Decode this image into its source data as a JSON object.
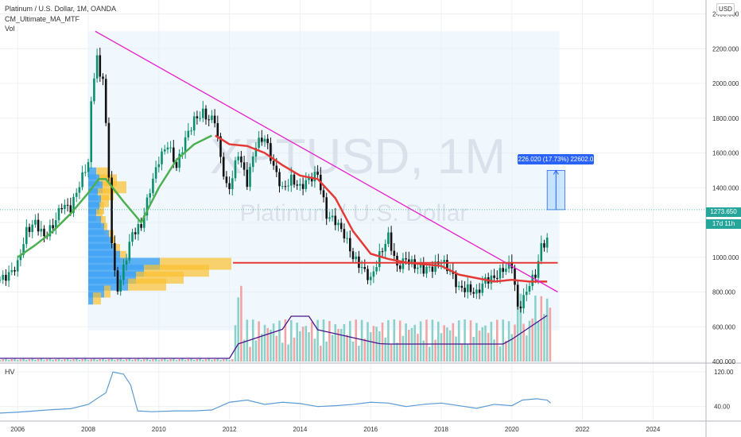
{
  "legend": {
    "symbol_line": "Platinum / U.S. Dollar, 1M, OANDA",
    "indicator1": "CM_Ultimate_MA_MTF",
    "indicator2": "Vol"
  },
  "watermark": {
    "ticker": "XPTUSD, 1M",
    "name": "Platinum / U.S. Dollar"
  },
  "currency_button": "USD",
  "hv_pane_label": "HV",
  "last_price_tag": "1273.650",
  "countdown_tag": "17d 11h",
  "measure_label": "226.020 (17.73%) 22602.0",
  "colors": {
    "up": "#26a69a",
    "down": "#ef5350",
    "ma_fast": "#e53935",
    "ma_slow_green": "#4caf50",
    "trendline": "#e91ecf",
    "level_line": "#e53935",
    "hv_line": "#5b9bd5",
    "vol_ma": "#4a148c",
    "bull_vol": "#80cbc4",
    "bear_vol": "#ef9a9a",
    "measure": "#2962ff"
  },
  "chart_data": [
    {
      "type": "candlestick",
      "title": "Platinum / U.S. Dollar, 1M, OANDA",
      "price_axis": {
        "ticks": [
          400,
          600,
          800,
          1000,
          1200,
          1400,
          1600,
          1800,
          2000,
          2200,
          2400
        ],
        "tick_labels": [
          "400.000",
          "600.000",
          "800.000",
          "1000.000",
          "1200.000",
          "1400.000",
          "1600.000",
          "1800.000",
          "2000.000",
          "2200.000",
          "2400.000"
        ],
        "range": [
          400,
          2480
        ]
      },
      "time_axis": {
        "ticks": [
          2006,
          2008,
          2010,
          2012,
          2014,
          2016,
          2018,
          2020,
          2022,
          2024
        ],
        "tick_labels": [
          "2006",
          "2008",
          "2010",
          "2012",
          "2014",
          "2016",
          "2018",
          "2020",
          "2022",
          "2024"
        ],
        "range": [
          2005.5,
          2025.5
        ]
      },
      "series": [
        {
          "kind": "close",
          "points": [
            [
              2005.5,
              870
            ],
            [
              2005.75,
              900
            ],
            [
              2006.0,
              960
            ],
            [
              2006.25,
              1150
            ],
            [
              2006.5,
              1200
            ],
            [
              2006.75,
              1120
            ],
            [
              2007.0,
              1180
            ],
            [
              2007.25,
              1300
            ],
            [
              2007.5,
              1280
            ],
            [
              2007.75,
              1420
            ],
            [
              2008.0,
              1550
            ],
            [
              2008.08,
              1870
            ],
            [
              2008.17,
              2060
            ],
            [
              2008.25,
              2150
            ],
            [
              2008.33,
              2030
            ],
            [
              2008.42,
              2050
            ],
            [
              2008.5,
              1750
            ],
            [
              2008.58,
              1480
            ],
            [
              2008.67,
              1080
            ],
            [
              2008.75,
              900
            ],
            [
              2008.83,
              820
            ],
            [
              2008.92,
              870
            ],
            [
              2009.0,
              940
            ],
            [
              2009.25,
              1140
            ],
            [
              2009.5,
              1180
            ],
            [
              2009.75,
              1390
            ],
            [
              2010.0,
              1560
            ],
            [
              2010.25,
              1650
            ],
            [
              2010.5,
              1520
            ],
            [
              2010.75,
              1680
            ],
            [
              2011.0,
              1790
            ],
            [
              2011.25,
              1830
            ],
            [
              2011.42,
              1790
            ],
            [
              2011.58,
              1800
            ],
            [
              2011.75,
              1570
            ],
            [
              2011.92,
              1400
            ],
            [
              2012.0,
              1400
            ],
            [
              2012.25,
              1600
            ],
            [
              2012.5,
              1430
            ],
            [
              2012.75,
              1650
            ],
            [
              2013.0,
              1690
            ],
            [
              2013.25,
              1520
            ],
            [
              2013.5,
              1390
            ],
            [
              2013.75,
              1450
            ],
            [
              2014.0,
              1400
            ],
            [
              2014.25,
              1450
            ],
            [
              2014.5,
              1480
            ],
            [
              2014.75,
              1240
            ],
            [
              2015.0,
              1210
            ],
            [
              2015.25,
              1130
            ],
            [
              2015.5,
              1000
            ],
            [
              2015.75,
              940
            ],
            [
              2016.0,
              870
            ],
            [
              2016.25,
              1010
            ],
            [
              2016.5,
              1120
            ],
            [
              2016.75,
              940
            ],
            [
              2017.0,
              990
            ],
            [
              2017.25,
              950
            ],
            [
              2017.5,
              930
            ],
            [
              2017.75,
              940
            ],
            [
              2018.0,
              980
            ],
            [
              2018.25,
              920
            ],
            [
              2018.5,
              820
            ],
            [
              2018.75,
              820
            ],
            [
              2019.0,
              790
            ],
            [
              2019.25,
              870
            ],
            [
              2019.5,
              880
            ],
            [
              2019.75,
              930
            ],
            [
              2020.0,
              960
            ],
            [
              2020.17,
              700
            ],
            [
              2020.33,
              760
            ],
            [
              2020.5,
              850
            ],
            [
              2020.67,
              900
            ],
            [
              2020.83,
              1060
            ],
            [
              2021.0,
              1100
            ],
            [
              2021.08,
              1273.65
            ]
          ]
        },
        {
          "kind": "moving-average",
          "color": "#e53935",
          "points": [
            [
              2011.6,
              1700
            ],
            [
              2012.0,
              1650
            ],
            [
              2012.5,
              1640
            ],
            [
              2013.0,
              1600
            ],
            [
              2013.5,
              1530
            ],
            [
              2014.0,
              1470
            ],
            [
              2014.5,
              1450
            ],
            [
              2015.0,
              1340
            ],
            [
              2015.5,
              1150
            ],
            [
              2016.0,
              1020
            ],
            [
              2016.5,
              990
            ],
            [
              2017.0,
              970
            ],
            [
              2017.5,
              960
            ],
            [
              2018.0,
              950
            ],
            [
              2018.5,
              900
            ],
            [
              2019.0,
              880
            ],
            [
              2019.5,
              860
            ],
            [
              2020.0,
              870
            ],
            [
              2020.5,
              860
            ],
            [
              2021.0,
              860
            ]
          ]
        },
        {
          "kind": "moving-average",
          "color": "#4caf50",
          "points": [
            [
              2006.0,
              1000
            ],
            [
              2006.5,
              1070
            ],
            [
              2007.0,
              1150
            ],
            [
              2007.5,
              1250
            ],
            [
              2008.0,
              1370
            ],
            [
              2008.3,
              1450
            ],
            [
              2008.5,
              1450
            ],
            [
              2009.0,
              1320
            ],
            [
              2009.5,
              1200
            ],
            [
              2010.0,
              1400
            ],
            [
              2010.5,
              1560
            ],
            [
              2011.0,
              1650
            ],
            [
              2011.5,
              1700
            ]
          ]
        }
      ],
      "annotations": {
        "trendline": [
          [
            2008.2,
            2300
          ],
          [
            2021.3,
            800
          ]
        ],
        "level": 968,
        "level_start": 2012.1,
        "measure": {
          "from": 1273.65,
          "to": 1499.67,
          "x_range": [
            2021.0,
            2021.5
          ]
        },
        "shaded_region": {
          "x_range": [
            2008.0,
            2021.35
          ],
          "y_range": [
            580,
            2300
          ]
        }
      }
    },
    {
      "type": "bar",
      "title": "Vol",
      "description_source": "volume pane overlaid at bottom of price pane"
    },
    {
      "type": "line",
      "title": "HV",
      "y_axis": {
        "ticks": [
          40,
          120
        ],
        "tick_labels": [
          "40.00",
          "120.00"
        ]
      },
      "series": [
        {
          "name": "HV",
          "points": [
            [
              2005.5,
              25
            ],
            [
              2006.0,
              27
            ],
            [
              2006.5,
              30
            ],
            [
              2007.0,
              33
            ],
            [
              2007.5,
              35
            ],
            [
              2008.0,
              45
            ],
            [
              2008.5,
              72
            ],
            [
              2008.7,
              120
            ],
            [
              2009.0,
              115
            ],
            [
              2009.2,
              90
            ],
            [
              2009.4,
              30
            ],
            [
              2009.8,
              28
            ],
            [
              2010.5,
              30
            ],
            [
              2011.0,
              30
            ],
            [
              2011.5,
              32
            ],
            [
              2012.0,
              50
            ],
            [
              2012.5,
              55
            ],
            [
              2013.0,
              45
            ],
            [
              2013.5,
              50
            ],
            [
              2014.0,
              47
            ],
            [
              2014.5,
              40
            ],
            [
              2015.0,
              42
            ],
            [
              2015.5,
              45
            ],
            [
              2016.0,
              50
            ],
            [
              2016.5,
              48
            ],
            [
              2017.0,
              40
            ],
            [
              2017.5,
              45
            ],
            [
              2018.0,
              48
            ],
            [
              2018.5,
              42
            ],
            [
              2019.0,
              36
            ],
            [
              2019.5,
              45
            ],
            [
              2020.0,
              42
            ],
            [
              2020.3,
              55
            ],
            [
              2020.7,
              58
            ],
            [
              2021.0,
              55
            ],
            [
              2021.1,
              48
            ]
          ]
        }
      ]
    }
  ]
}
